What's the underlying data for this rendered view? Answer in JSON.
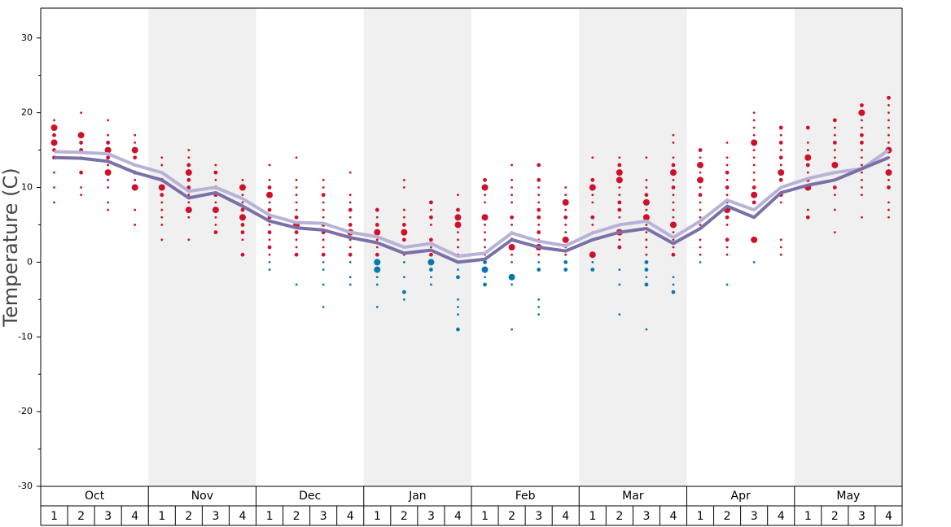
{
  "chart_data": {
    "type": "line",
    "y_label": "Temperature (C)",
    "months": [
      "Oct",
      "Nov",
      "Dec",
      "Jan",
      "Feb",
      "Mar",
      "Apr",
      "May"
    ],
    "week_labels": [
      1,
      2,
      3,
      4
    ],
    "ylim": [
      -30,
      34
    ],
    "yticks": [
      -30,
      -20,
      -10,
      0,
      10,
      20,
      30
    ],
    "yminor": [
      -25,
      -15,
      -5,
      5,
      15,
      25
    ],
    "series": [
      {
        "color": "#b7b2d6",
        "values": [
          14.8,
          14.7,
          14.5,
          13,
          12,
          9.5,
          10,
          8.5,
          6.3,
          5.3,
          5.2,
          4,
          3.4,
          2,
          2.5,
          0.8,
          1.2,
          3.9,
          2.8,
          2.2,
          3.9,
          5,
          5.5,
          3.3,
          5.5,
          8.3,
          7,
          10,
          11.2,
          12,
          12.5,
          15
        ]
      },
      {
        "color": "#7b6fa8",
        "values": [
          14,
          13.9,
          13.5,
          12,
          11,
          8.6,
          9.3,
          7.5,
          5.5,
          4.6,
          4.3,
          3.3,
          2.6,
          1.2,
          1.6,
          0,
          0.4,
          3,
          2,
          1.5,
          3,
          4,
          4.5,
          2.5,
          4.5,
          7.5,
          6,
          9.3,
          10.3,
          11,
          12.5,
          14
        ]
      }
    ],
    "positive_color": "#d0102a",
    "negative_color": "#0a78b0",
    "weeks": [
      {
        "values": [
          19,
          18,
          17,
          16,
          15,
          14,
          12,
          10,
          8
        ],
        "sizes": [
          1,
          3,
          2,
          3,
          2,
          2,
          1,
          1,
          1
        ]
      },
      {
        "values": [
          20,
          17,
          16,
          15,
          14,
          12,
          10,
          9
        ],
        "sizes": [
          1,
          3,
          2,
          2,
          1,
          2,
          1,
          1
        ]
      },
      {
        "values": [
          19,
          17,
          16,
          15,
          14,
          13,
          12,
          11,
          10,
          8,
          7
        ],
        "sizes": [
          1,
          1,
          2,
          3,
          2,
          1,
          3,
          1,
          1,
          1,
          1
        ]
      },
      {
        "values": [
          17,
          16,
          15,
          14,
          13,
          12,
          11,
          10,
          7,
          5
        ],
        "sizes": [
          1,
          1,
          3,
          2,
          1,
          2,
          1,
          3,
          1,
          1
        ]
      },
      {
        "values": [
          14,
          13,
          11,
          10,
          9,
          8,
          7,
          6,
          5,
          3
        ],
        "sizes": [
          1,
          1,
          2,
          3,
          2,
          1,
          1,
          1,
          1,
          1
        ]
      },
      {
        "values": [
          15,
          14,
          13,
          12,
          11,
          10,
          9,
          8,
          7,
          6,
          3
        ],
        "sizes": [
          1,
          1,
          2,
          3,
          2,
          2,
          1,
          1,
          3,
          1,
          1
        ]
      },
      {
        "values": [
          13,
          12,
          11,
          10,
          9,
          8,
          7,
          6,
          5,
          4
        ],
        "sizes": [
          1,
          2,
          1,
          2,
          2,
          1,
          3,
          1,
          1,
          2
        ]
      },
      {
        "values": [
          11,
          10,
          9,
          8,
          7,
          6,
          5,
          4,
          3,
          1
        ],
        "sizes": [
          1,
          3,
          1,
          1,
          2,
          3,
          2,
          2,
          1,
          2
        ]
      },
      {
        "values": [
          13,
          11,
          10,
          9,
          8,
          7,
          6,
          5,
          4,
          3,
          2,
          1,
          0,
          -1
        ],
        "sizes": [
          1,
          1,
          2,
          3,
          1,
          2,
          2,
          1,
          2,
          1,
          2,
          1,
          1,
          1
        ]
      },
      {
        "values": [
          14,
          11,
          10,
          9,
          8,
          7,
          6,
          5,
          4,
          3,
          2,
          1,
          -3
        ],
        "sizes": [
          1,
          1,
          1,
          1,
          1,
          1,
          2,
          3,
          2,
          1,
          1,
          2,
          1
        ]
      },
      {
        "values": [
          11,
          10,
          9,
          8,
          7,
          6,
          5,
          4,
          3,
          2,
          1,
          0,
          -1,
          -3,
          -6
        ],
        "sizes": [
          1,
          1,
          2,
          1,
          1,
          1,
          2,
          2,
          1,
          1,
          2,
          1,
          1,
          1,
          1
        ]
      },
      {
        "values": [
          12,
          9,
          8,
          7,
          6,
          5,
          4,
          3,
          2,
          1,
          0,
          -2,
          -3
        ],
        "sizes": [
          1,
          1,
          1,
          2,
          1,
          2,
          3,
          1,
          1,
          2,
          1,
          1,
          1
        ]
      },
      {
        "values": [
          7,
          6,
          5,
          4,
          3,
          2,
          1,
          0,
          -1,
          -2,
          -3,
          -6
        ],
        "sizes": [
          2,
          1,
          2,
          3,
          1,
          1,
          2,
          3,
          3,
          1,
          1,
          1
        ]
      },
      {
        "values": [
          11,
          10,
          7,
          6,
          5,
          4,
          3,
          2,
          1,
          0,
          -2,
          -4,
          -5
        ],
        "sizes": [
          1,
          1,
          1,
          1,
          2,
          3,
          2,
          1,
          1,
          1,
          1,
          2,
          1
        ]
      },
      {
        "values": [
          8,
          7,
          6,
          5,
          3,
          2,
          1,
          0,
          -1,
          -2,
          -3
        ],
        "sizes": [
          2,
          1,
          2,
          1,
          2,
          1,
          2,
          3,
          2,
          1,
          1
        ]
      },
      {
        "values": [
          9,
          7,
          6,
          5,
          4,
          3,
          2,
          1,
          0,
          -1,
          -2,
          -5,
          -6,
          -7,
          -9
        ],
        "sizes": [
          1,
          2,
          3,
          3,
          1,
          1,
          1,
          1,
          1,
          1,
          2,
          1,
          1,
          1,
          2
        ]
      },
      {
        "values": [
          11,
          10,
          9,
          8,
          6,
          5,
          4,
          3,
          2,
          1,
          0,
          -1,
          -2,
          -3
        ],
        "sizes": [
          2,
          3,
          1,
          1,
          3,
          1,
          1,
          1,
          1,
          1,
          2,
          3,
          1,
          2
        ]
      },
      {
        "values": [
          13,
          11,
          10,
          9,
          8,
          6,
          5,
          4,
          3,
          2,
          1,
          0,
          -2,
          -3,
          -9
        ],
        "sizes": [
          1,
          1,
          1,
          1,
          1,
          2,
          1,
          1,
          2,
          3,
          1,
          1,
          3,
          1,
          1
        ]
      },
      {
        "values": [
          13,
          11,
          10,
          9,
          8,
          7,
          6,
          5,
          4,
          3,
          2,
          1,
          0,
          -1,
          -5,
          -6,
          -7
        ],
        "sizes": [
          2,
          2,
          1,
          1,
          1,
          2,
          2,
          1,
          2,
          1,
          3,
          1,
          1,
          2,
          1,
          1,
          1
        ]
      },
      {
        "values": [
          10,
          9,
          8,
          7,
          6,
          5,
          4,
          3,
          2,
          1,
          0,
          -1
        ],
        "sizes": [
          1,
          1,
          3,
          1,
          2,
          1,
          1,
          3,
          1,
          1,
          2,
          2
        ]
      },
      {
        "values": [
          14,
          11,
          10,
          9,
          8,
          6,
          5,
          4,
          3,
          1,
          0,
          -1
        ],
        "sizes": [
          1,
          2,
          3,
          1,
          1,
          2,
          1,
          1,
          1,
          3,
          1,
          2
        ]
      },
      {
        "values": [
          14,
          13,
          12,
          11,
          10,
          9,
          8,
          7,
          6,
          5,
          4,
          3,
          2,
          -1,
          -3,
          -7
        ],
        "sizes": [
          1,
          2,
          3,
          3,
          1,
          1,
          2,
          2,
          1,
          1,
          3,
          1,
          2,
          1,
          1,
          1
        ]
      },
      {
        "values": [
          14,
          11,
          10,
          9,
          8,
          7,
          6,
          5,
          4,
          3,
          2,
          1,
          0,
          -1,
          -2,
          -3,
          -9
        ],
        "sizes": [
          1,
          1,
          1,
          2,
          3,
          1,
          3,
          1,
          1,
          1,
          1,
          1,
          2,
          2,
          1,
          2,
          1
        ]
      },
      {
        "values": [
          17,
          16,
          14,
          13,
          12,
          11,
          10,
          9,
          8,
          7,
          6,
          5,
          4,
          3,
          2,
          1,
          -2,
          -3,
          -4
        ],
        "sizes": [
          1,
          1,
          1,
          2,
          3,
          1,
          2,
          1,
          1,
          1,
          1,
          3,
          1,
          1,
          1,
          2,
          1,
          1,
          2
        ]
      },
      {
        "values": [
          15,
          14,
          13,
          12,
          11,
          10,
          9,
          8,
          7,
          6,
          5,
          3,
          2,
          1,
          0
        ],
        "sizes": [
          2,
          1,
          3,
          1,
          3,
          1,
          2,
          1,
          1,
          1,
          1,
          1,
          1,
          1,
          1
        ]
      },
      {
        "values": [
          16,
          14,
          13,
          12,
          11,
          10,
          9,
          8,
          7,
          6,
          5,
          3,
          2,
          1,
          -3
        ],
        "sizes": [
          1,
          1,
          1,
          2,
          1,
          2,
          1,
          1,
          3,
          2,
          1,
          2,
          1,
          1,
          1
        ]
      },
      {
        "values": [
          20,
          19,
          18,
          17,
          16,
          15,
          14,
          13,
          12,
          11,
          10,
          9,
          8,
          7,
          3,
          0
        ],
        "sizes": [
          1,
          1,
          1,
          1,
          3,
          1,
          1,
          1,
          1,
          1,
          2,
          3,
          2,
          1,
          3,
          1
        ]
      },
      {
        "values": [
          18,
          17,
          16,
          15,
          14,
          13,
          12,
          11,
          10,
          9,
          8,
          3,
          2,
          1
        ],
        "sizes": [
          2,
          1,
          2,
          1,
          2,
          1,
          3,
          2,
          1,
          2,
          1,
          1,
          1,
          1
        ]
      },
      {
        "values": [
          18,
          16,
          15,
          14,
          13,
          12,
          11,
          10,
          7,
          6
        ],
        "sizes": [
          2,
          1,
          1,
          3,
          2,
          1,
          2,
          3,
          1,
          2
        ]
      },
      {
        "values": [
          19,
          18,
          17,
          16,
          15,
          14,
          13,
          12,
          11,
          10,
          9,
          7,
          4
        ],
        "sizes": [
          2,
          1,
          1,
          2,
          1,
          1,
          3,
          1,
          1,
          2,
          1,
          1,
          1
        ]
      },
      {
        "values": [
          21,
          20,
          19,
          18,
          17,
          16,
          15,
          14,
          13,
          12,
          11,
          10,
          9,
          6
        ],
        "sizes": [
          2,
          3,
          1,
          1,
          2,
          2,
          1,
          1,
          1,
          1,
          1,
          1,
          1,
          1
        ]
      },
      {
        "values": [
          22,
          21,
          20,
          19,
          18,
          17,
          16,
          15,
          14,
          13,
          12,
          11,
          10,
          8,
          7,
          6
        ],
        "sizes": [
          2,
          1,
          1,
          1,
          1,
          1,
          1,
          3,
          1,
          1,
          3,
          1,
          2,
          1,
          1,
          1
        ]
      }
    ]
  }
}
